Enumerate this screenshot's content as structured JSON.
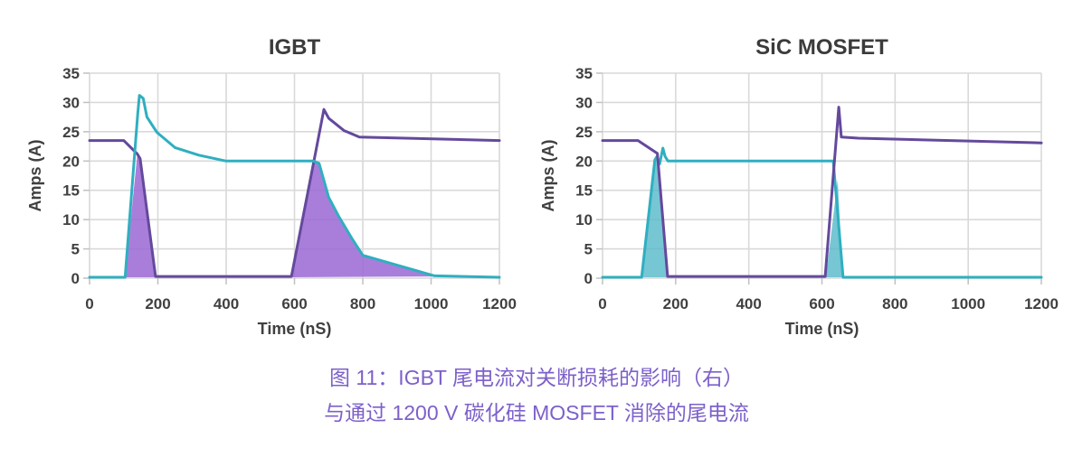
{
  "figure": {
    "caption": {
      "line1": "图 11：IGBT 尾电流对关断损耗的影响（右）",
      "line2": "与通过 1200 V 碳化硅 MOSFET 消除的尾电流"
    }
  },
  "colors": {
    "purple_line": "#64499c",
    "teal_line": "#2fafc0",
    "purple_fill": "#9a67d3",
    "teal_fill": "#54b8c9",
    "grid": "#d9d9d9",
    "tick_mark": "#c0c0c0",
    "axis_text": "#404040",
    "title_text": "#3b3b3b",
    "caption_text": "#7d60ca"
  },
  "chart_data": [
    {
      "type": "line",
      "title": "IGBT",
      "xlabel": "Time (nS)",
      "ylabel": "Amps (A)",
      "xlim": [
        0,
        1200
      ],
      "ylim": [
        0,
        35
      ],
      "x_ticks": [
        0,
        200,
        400,
        600,
        800,
        1000,
        1200
      ],
      "y_ticks": [
        0,
        5,
        10,
        15,
        20,
        25,
        30,
        35
      ],
      "grid": true,
      "legend": "none",
      "series": [
        {
          "name": "purple-device-current",
          "color_key": "purple_line",
          "points": [
            [
              0,
              23.5
            ],
            [
              100,
              23.5
            ],
            [
              140,
              21.2
            ],
            [
              148,
              20.4
            ],
            [
              193,
              0.3
            ],
            [
              591,
              0.3
            ],
            [
              657,
              20
            ],
            [
              686,
              28.8
            ],
            [
              700,
              27.3
            ],
            [
              745,
              25.2
            ],
            [
              790,
              24.1
            ],
            [
              1200,
              23.5
            ]
          ]
        },
        {
          "name": "teal-complementary-current",
          "color_key": "teal_line",
          "points": [
            [
              0,
              0.15
            ],
            [
              104,
              0.15
            ],
            [
              141,
              28
            ],
            [
              146,
              31.2
            ],
            [
              157,
              30.7
            ],
            [
              168,
              27.5
            ],
            [
              197,
              24.9
            ],
            [
              250,
              22.3
            ],
            [
              320,
              21
            ],
            [
              400,
              20
            ],
            [
              655,
              20
            ],
            [
              672,
              19.6
            ],
            [
              700,
              13.8
            ],
            [
              730,
              10.5
            ],
            [
              768,
              6.8
            ],
            [
              800,
              3.9
            ],
            [
              1010,
              0.4
            ],
            [
              1200,
              0.15
            ]
          ]
        }
      ],
      "fills": [
        {
          "name": "turn-on-overlap-loss-area",
          "color_key": "purple_fill",
          "opacity": 0.85,
          "points": [
            [
              104,
              0.15
            ],
            [
              140,
              21.2
            ],
            [
              148,
              20.4
            ],
            [
              193,
              0.15
            ]
          ]
        },
        {
          "name": "turn-off-tail-current-loss-area",
          "color_key": "purple_fill",
          "opacity": 0.85,
          "points": [
            [
              591,
              0.15
            ],
            [
              657,
              20
            ],
            [
              668,
              19.8
            ],
            [
              700,
              13.8
            ],
            [
              730,
              10.5
            ],
            [
              768,
              6.8
            ],
            [
              800,
              3.9
            ],
            [
              1010,
              0.3
            ]
          ]
        }
      ]
    },
    {
      "type": "line",
      "title": "SiC MOSFET",
      "xlabel": "Time (nS)",
      "ylabel": "Amps (A)",
      "xlim": [
        0,
        1200
      ],
      "ylim": [
        0,
        35
      ],
      "x_ticks": [
        0,
        200,
        400,
        600,
        800,
        1000,
        1200
      ],
      "y_ticks": [
        0,
        5,
        10,
        15,
        20,
        25,
        30,
        35
      ],
      "grid": true,
      "legend": "none",
      "series": [
        {
          "name": "teal-complementary-current",
          "color_key": "teal_line",
          "points": [
            [
              0,
              0.15
            ],
            [
              107,
              0.15
            ],
            [
              143,
              20.2
            ],
            [
              149,
              20.8
            ],
            [
              156,
              19.5
            ],
            [
              165,
              22.2
            ],
            [
              171,
              20.8
            ],
            [
              179,
              20
            ],
            [
              631,
              20
            ],
            [
              658,
              0.15
            ],
            [
              1200,
              0.15
            ]
          ]
        },
        {
          "name": "purple-device-current",
          "color_key": "purple_line",
          "points": [
            [
              0,
              23.5
            ],
            [
              97,
              23.5
            ],
            [
              150,
              21.3
            ],
            [
              178,
              0.3
            ],
            [
              609,
              0.3
            ],
            [
              646,
              29.2
            ],
            [
              653,
              24.1
            ],
            [
              700,
              23.9
            ],
            [
              1200,
              23.1
            ]
          ]
        }
      ],
      "fills": [
        {
          "name": "turn-on-overlap-loss-area",
          "color_key": "teal_fill",
          "opacity": 0.8,
          "points": [
            [
              107,
              0.15
            ],
            [
              145,
              20.2
            ],
            [
              150,
              20.8
            ],
            [
              177,
              0.15
            ]
          ]
        },
        {
          "name": "turn-off-overlap-loss-area",
          "color_key": "teal_fill",
          "opacity": 0.8,
          "points": [
            [
              611,
              0.15
            ],
            [
              643,
              16.8
            ],
            [
              657,
              0.15
            ]
          ]
        }
      ]
    }
  ]
}
